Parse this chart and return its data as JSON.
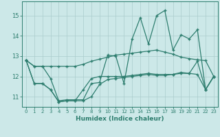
{
  "xlabel": "Humidex (Indice chaleur)",
  "bg_color": "#cce8e8",
  "line_color": "#2d7d6e",
  "grid_color": "#aacccc",
  "xlim": [
    -0.5,
    23.5
  ],
  "ylim": [
    10.5,
    15.7
  ],
  "yticks": [
    11,
    12,
    13,
    14,
    15
  ],
  "xticks": [
    0,
    1,
    2,
    3,
    4,
    5,
    6,
    7,
    8,
    9,
    10,
    11,
    12,
    13,
    14,
    15,
    16,
    17,
    18,
    19,
    20,
    21,
    22,
    23
  ],
  "series": [
    [
      12.8,
      12.5,
      12.5,
      12.5,
      12.5,
      12.5,
      12.5,
      12.6,
      12.75,
      12.85,
      12.95,
      13.05,
      13.1,
      13.15,
      13.2,
      13.25,
      13.3,
      13.2,
      13.1,
      12.95,
      12.88,
      12.82,
      12.78,
      12.0
    ],
    [
      12.8,
      12.5,
      12.5,
      11.9,
      10.8,
      10.85,
      10.85,
      10.85,
      11.65,
      11.7,
      13.05,
      13.0,
      11.65,
      13.85,
      14.9,
      13.6,
      15.0,
      15.25,
      13.3,
      14.05,
      13.85,
      14.3,
      11.35,
      12.0
    ],
    [
      12.8,
      11.65,
      11.65,
      11.35,
      10.75,
      10.8,
      10.8,
      10.8,
      11.0,
      11.6,
      11.85,
      11.9,
      11.95,
      12.0,
      12.05,
      12.1,
      12.05,
      12.05,
      12.1,
      12.15,
      12.15,
      12.1,
      11.35,
      12.0
    ],
    [
      12.8,
      11.65,
      11.65,
      11.35,
      10.75,
      10.8,
      10.8,
      11.35,
      11.9,
      12.0,
      12.0,
      12.0,
      12.0,
      12.05,
      12.1,
      12.15,
      12.1,
      12.1,
      12.1,
      12.2,
      12.15,
      12.75,
      11.35,
      12.0
    ]
  ]
}
